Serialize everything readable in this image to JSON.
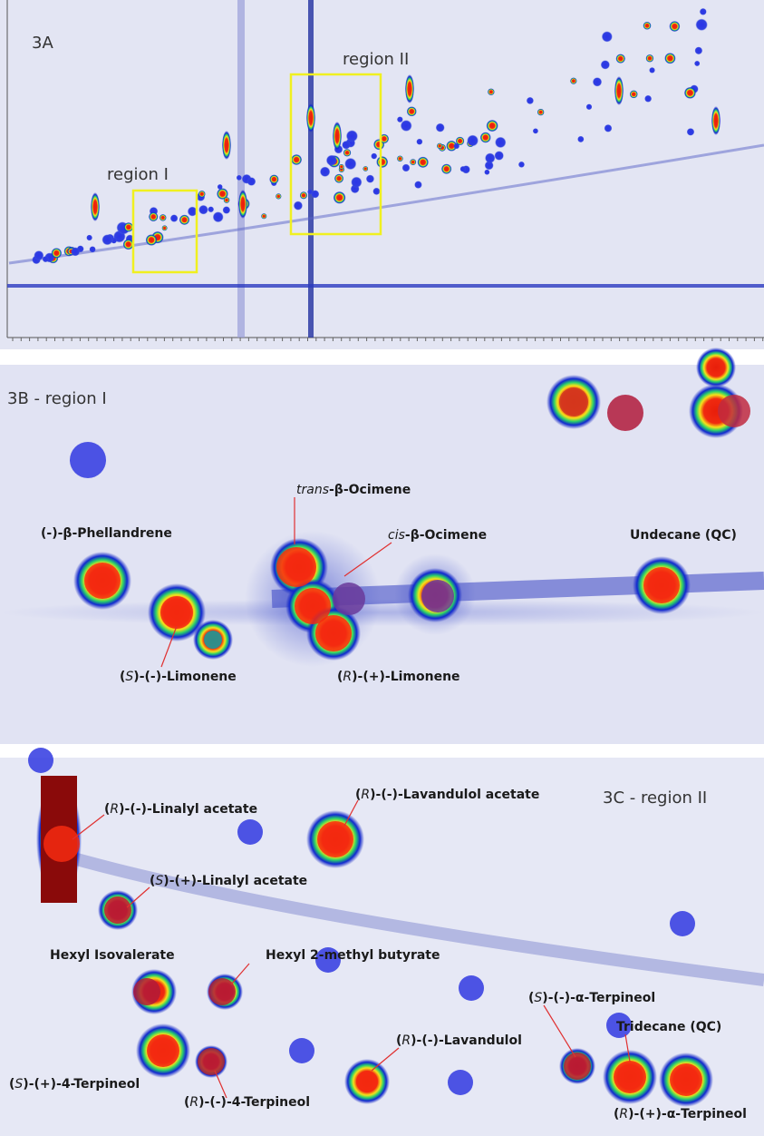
{
  "panels": [
    {
      "label": "3A",
      "regions": [
        "region I",
        "region II"
      ]
    },
    {
      "label": "3B - region I",
      "compounds": [
        {
          "parts": [
            {
              "text": "(-)-β-Phellandrene"
            }
          ]
        },
        {
          "parts": [
            {
              "text": "trans",
              "italic": true
            },
            {
              "text": "-β-Ocimene"
            }
          ]
        },
        {
          "parts": [
            {
              "text": "cis",
              "italic": true
            },
            {
              "text": "-β-Ocimene"
            }
          ]
        },
        {
          "parts": [
            {
              "text": "Undecane (QC)"
            }
          ]
        },
        {
          "parts": [
            {
              "text": "("
            },
            {
              "text": "S",
              "italic": true
            },
            {
              "text": ")-(-)-Limonene"
            }
          ]
        },
        {
          "parts": [
            {
              "text": "("
            },
            {
              "text": "R",
              "italic": true
            },
            {
              "text": ")-(+)-Limonene"
            }
          ]
        }
      ]
    },
    {
      "label": "3C - region II",
      "compounds": [
        {
          "parts": [
            {
              "text": "("
            },
            {
              "text": "R",
              "italic": true
            },
            {
              "text": ")-(-)-Linalyl acetate"
            }
          ]
        },
        {
          "parts": [
            {
              "text": "("
            },
            {
              "text": "R",
              "italic": true
            },
            {
              "text": ")-(-)-Lavandulol acetate"
            }
          ]
        },
        {
          "parts": [
            {
              "text": "("
            },
            {
              "text": "S",
              "italic": true
            },
            {
              "text": ")-(+)-Linalyl acetate"
            }
          ]
        },
        {
          "parts": [
            {
              "text": "Hexyl Isovalerate"
            }
          ]
        },
        {
          "parts": [
            {
              "text": "Hexyl 2-methyl butyrate"
            }
          ]
        },
        {
          "parts": [
            {
              "text": "("
            },
            {
              "text": "S",
              "italic": true
            },
            {
              "text": ")-(-)-α-Terpineol"
            }
          ]
        },
        {
          "parts": [
            {
              "text": "("
            },
            {
              "text": "R",
              "italic": true
            },
            {
              "text": ")-(-)-Lavandulol"
            }
          ]
        },
        {
          "parts": [
            {
              "text": "Tridecane (QC)"
            }
          ]
        },
        {
          "parts": [
            {
              "text": "("
            },
            {
              "text": "S",
              "italic": true
            },
            {
              "text": ")-(+)-4-Terpineol"
            }
          ]
        },
        {
          "parts": [
            {
              "text": "("
            },
            {
              "text": "R",
              "italic": true
            },
            {
              "text": ")-(-)-4-Terpineol"
            }
          ]
        },
        {
          "parts": [
            {
              "text": "("
            },
            {
              "text": "R",
              "italic": true
            },
            {
              "text": ")-(+)-α-Terpineol"
            }
          ]
        }
      ]
    }
  ]
}
